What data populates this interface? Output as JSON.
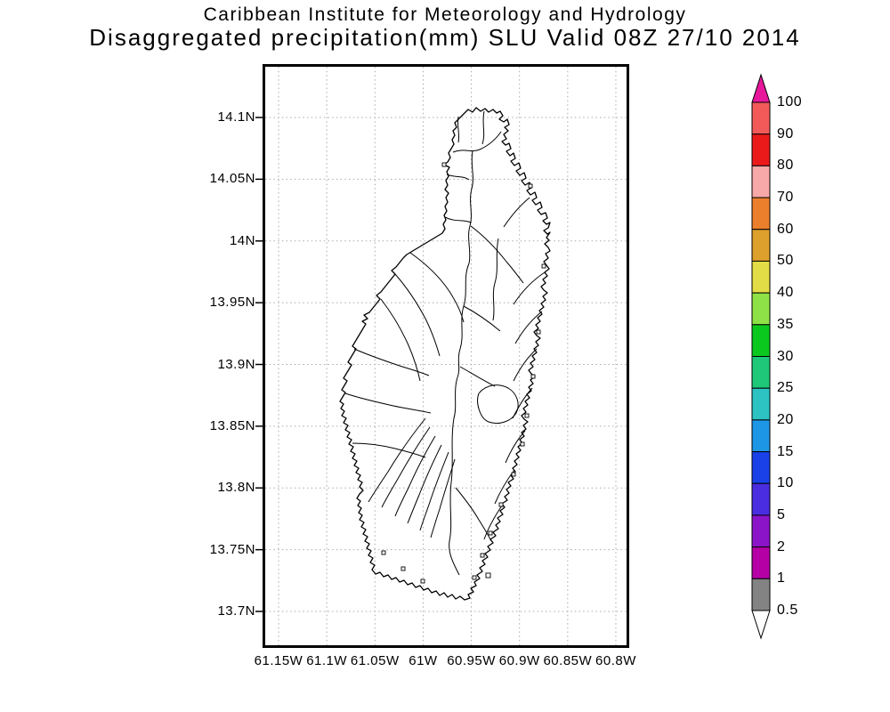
{
  "title": {
    "line1": "Caribbean Institute for Meteorology and Hydrology",
    "line2": "Disaggregated precipitation(mm) SLU Valid 08Z 27/10 2014"
  },
  "map": {
    "lat_labels": [
      "14.1N",
      "14.05N",
      "14N",
      "13.95N",
      "13.9N",
      "13.85N",
      "13.8N",
      "13.75N",
      "13.7N"
    ],
    "lon_labels": [
      "61.15W",
      "61.1W",
      "61.05W",
      "61W",
      "60.95W",
      "60.9W",
      "60.85W",
      "60.8W"
    ]
  },
  "colorbar": {
    "labels": [
      "100",
      "90",
      "80",
      "70",
      "60",
      "50",
      "40",
      "35",
      "30",
      "25",
      "20",
      "15",
      "10",
      "5",
      "2",
      "1",
      "0.5"
    ],
    "segment_colors_top_to_bottom": [
      "#f25a5a",
      "#eb1a1a",
      "#f7a8a8",
      "#ec7f2c",
      "#dda02c",
      "#e2dc46",
      "#8ee146",
      "#0bc81e",
      "#1ec878",
      "#2dc3c3",
      "#1e96e6",
      "#1a41e8",
      "#4a2ce1",
      "#8c14c8",
      "#b400a5",
      "#838383"
    ],
    "top_arrow_color": "#e6179b",
    "bottom_arrow_color": "#ffffff"
  },
  "chart_data": {
    "type": "map",
    "title": "Caribbean Institute for Meteorology and Hydrology — Disaggregated precipitation(mm) SLU Valid 08Z 27/10 2014",
    "region_code": "SLU",
    "valid_time": "08Z 27/10 2014",
    "units": "mm",
    "lat_ticks": [
      "14.1N",
      "14.05N",
      "14N",
      "13.95N",
      "13.9N",
      "13.85N",
      "13.8N",
      "13.75N",
      "13.7N"
    ],
    "lon_ticks": [
      "61.15W",
      "61.1W",
      "61.05W",
      "61W",
      "60.95W",
      "60.9W",
      "60.85W",
      "60.8W"
    ],
    "grid": true,
    "legend_position": "right",
    "colorbar_levels": [
      0.5,
      1,
      2,
      5,
      10,
      15,
      20,
      25,
      30,
      35,
      40,
      50,
      60,
      70,
      80,
      90,
      100
    ],
    "shaded_values_present": false
  }
}
